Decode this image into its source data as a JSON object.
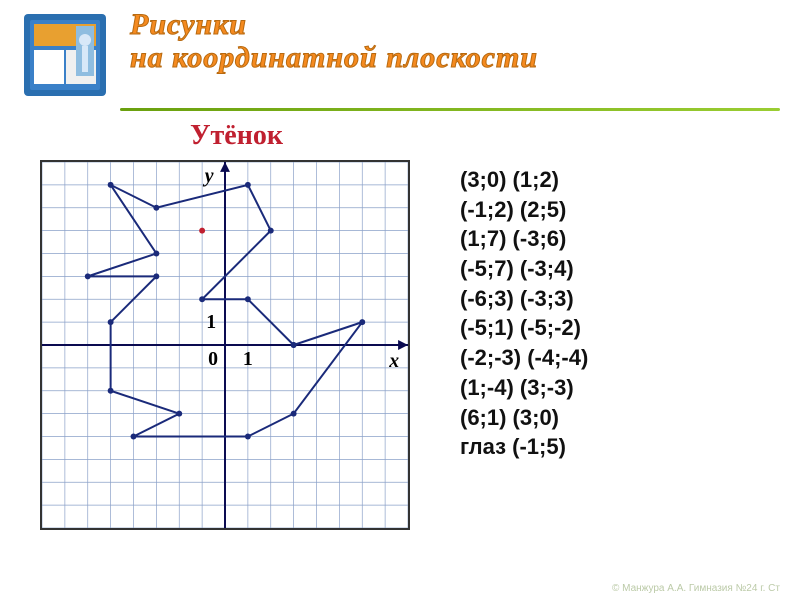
{
  "header": {
    "title_line1": "Рисунки",
    "title_line2": "на координатной плоскости",
    "title_color": "#f58a1f",
    "title_fontsize": 30,
    "divider_color_start": "#6aa00e",
    "divider_color_end": "#9acd32"
  },
  "subtitle": {
    "text": "Утёнок",
    "color": "#c02030",
    "fontsize": 28
  },
  "book_icon": {
    "cover_color": "#2a6fb0",
    "accent_color": "#e8a030",
    "inner_color": "#ffffff"
  },
  "chart": {
    "type": "coordinate-plot",
    "xlim": [
      -8,
      8
    ],
    "ylim": [
      -8,
      8
    ],
    "tick_step": 1,
    "grid_color": "#8aa0c8",
    "axis_color": "#0a0a50",
    "background_color": "#ffffff",
    "line_color": "#1a2a7a",
    "line_width": 2,
    "marker_radius": 3,
    "marker_fill": "#1a2a7a",
    "eye_color": "#c02030",
    "axis_labels": {
      "x": "х",
      "y": "у",
      "origin": "0",
      "one": "1"
    },
    "label_fontsize": 20,
    "label_color": "#000000",
    "polyline": [
      [
        3,
        0
      ],
      [
        1,
        2
      ],
      [
        -1,
        2
      ],
      [
        2,
        5
      ],
      [
        1,
        7
      ],
      [
        -3,
        6
      ],
      [
        -5,
        7
      ],
      [
        -3,
        4
      ],
      [
        -6,
        3
      ],
      [
        -3,
        3
      ],
      [
        -5,
        1
      ],
      [
        -5,
        -2
      ],
      [
        -2,
        -3
      ],
      [
        -4,
        -4
      ],
      [
        1,
        -4
      ],
      [
        3,
        -3
      ],
      [
        6,
        1
      ],
      [
        3,
        0
      ]
    ],
    "eye": [
      -1,
      5
    ]
  },
  "coord_list": {
    "lines": [
      "(3;0) (1;2)",
      "(-1;2) (2;5)",
      "(1;7) (-3;6)",
      "(-5;7) (-3;4)",
      "(-6;3) (-3;3)",
      "(-5;1) (-5;-2)",
      "(-2;-3) (-4;-4)",
      "(1;-4) (3;-3)",
      "(6;1) (3;0)",
      "глаз (-1;5)"
    ],
    "color": "#111111",
    "fontsize": 22
  },
  "footer": {
    "text": "© Манжура А.А. Гимназия №24 г. Ст"
  }
}
